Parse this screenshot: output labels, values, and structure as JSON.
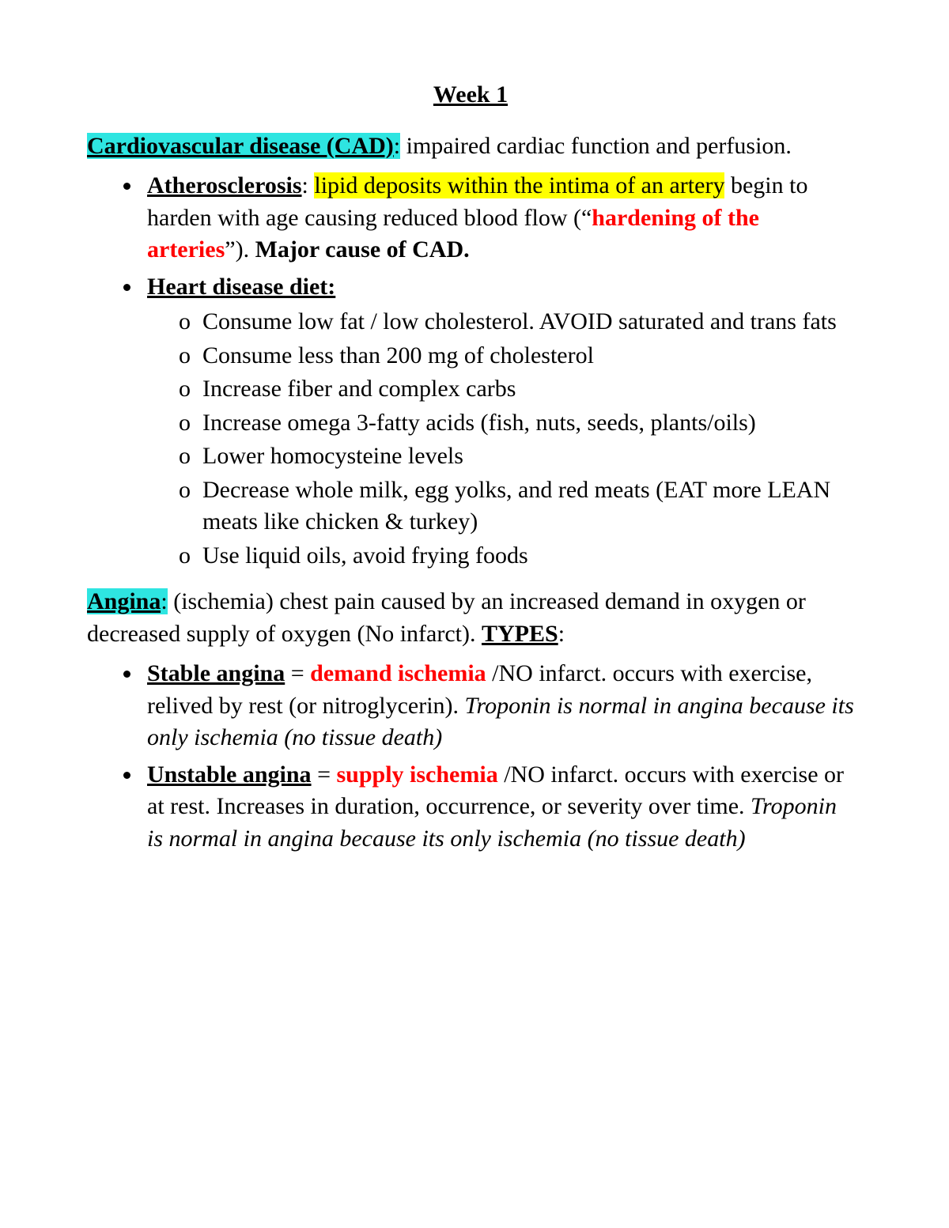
{
  "colors": {
    "text": "#000000",
    "background": "#ffffff",
    "highlight_cyan": "#2ee5e1",
    "highlight_yellow": "#ffff00",
    "red": "#ff0000"
  },
  "typography": {
    "font_family": "Times New Roman",
    "base_fontsize_pt": 22,
    "line_height": 1.35
  },
  "title": "Week 1",
  "cad": {
    "heading": "Cardiovascular disease (CAD)",
    "heading_colon": ":",
    "rest": " impaired cardiac function and perfusion."
  },
  "athero": {
    "label": "Atherosclerosis",
    "colon": ": ",
    "hl_part": "lipid deposits within the intima of an artery",
    "mid": " begin to harden with age causing reduced blood flow (“",
    "red_part": "hardening of the arteries",
    "closeq": "”). ",
    "tail_bold": "Major cause of CAD."
  },
  "diet": {
    "label": "Heart disease diet:",
    "items": [
      "Consume low fat / low cholesterol. AVOID saturated and trans fats",
      "Consume less than 200 mg of cholesterol",
      "Increase fiber and complex carbs",
      "Increase omega 3-fatty acids (fish, nuts, seeds, plants/oils)",
      "Lower homocysteine levels",
      "Decrease whole milk, egg yolks, and red meats (EAT more LEAN meats like chicken & turkey)",
      "Use liquid oils, avoid frying foods"
    ]
  },
  "angina": {
    "heading": "Angina",
    "colon": ":",
    "rest1": " (ischemia) chest pain caused by an increased demand in oxygen or decreased supply of oxygen (No infarct). ",
    "types_label": "TYPES",
    "types_colon": ":"
  },
  "stable": {
    "label": "Stable angina",
    "eq": " = ",
    "red": "demand ischemia",
    "mid": " /NO infarct. occurs with exercise, relived by rest (or nitroglycerin). ",
    "ital": "Troponin is normal in angina because its only ischemia (no tissue death)"
  },
  "unstable": {
    "label": "Unstable angina",
    "eq": " = ",
    "red": "supply ischemia",
    "mid": " /NO infarct. occurs with exercise or at rest. Increases in duration, occurrence, or severity over time. ",
    "ital": "Troponin is normal in angina because its only ischemia (no tissue death)"
  }
}
